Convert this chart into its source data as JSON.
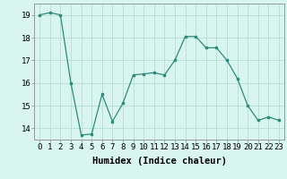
{
  "x": [
    0,
    1,
    2,
    3,
    4,
    5,
    6,
    7,
    8,
    9,
    10,
    11,
    12,
    13,
    14,
    15,
    16,
    17,
    18,
    19,
    20,
    21,
    22,
    23
  ],
  "y": [
    19.0,
    19.1,
    19.0,
    16.0,
    13.7,
    13.75,
    15.5,
    14.3,
    15.1,
    16.35,
    16.4,
    16.45,
    16.35,
    17.0,
    18.05,
    18.05,
    17.55,
    17.55,
    17.0,
    16.2,
    15.0,
    14.35,
    14.5,
    14.35
  ],
  "line_color": "#2d8b7a",
  "marker_color": "#2d8b7a",
  "bg_color": "#d8f5f0",
  "grid_color": "#b8ddd8",
  "xlabel": "Humidex (Indice chaleur)",
  "xlim": [
    -0.5,
    23.5
  ],
  "ylim": [
    13.5,
    19.5
  ],
  "yticks": [
    14,
    15,
    16,
    17,
    18,
    19
  ],
  "xtick_labels": [
    "0",
    "1",
    "2",
    "3",
    "4",
    "5",
    "6",
    "7",
    "8",
    "9",
    "10",
    "11",
    "12",
    "13",
    "14",
    "15",
    "16",
    "17",
    "18",
    "19",
    "20",
    "21",
    "22",
    "23"
  ],
  "xlabel_fontsize": 7.5,
  "tick_fontsize": 6.5
}
